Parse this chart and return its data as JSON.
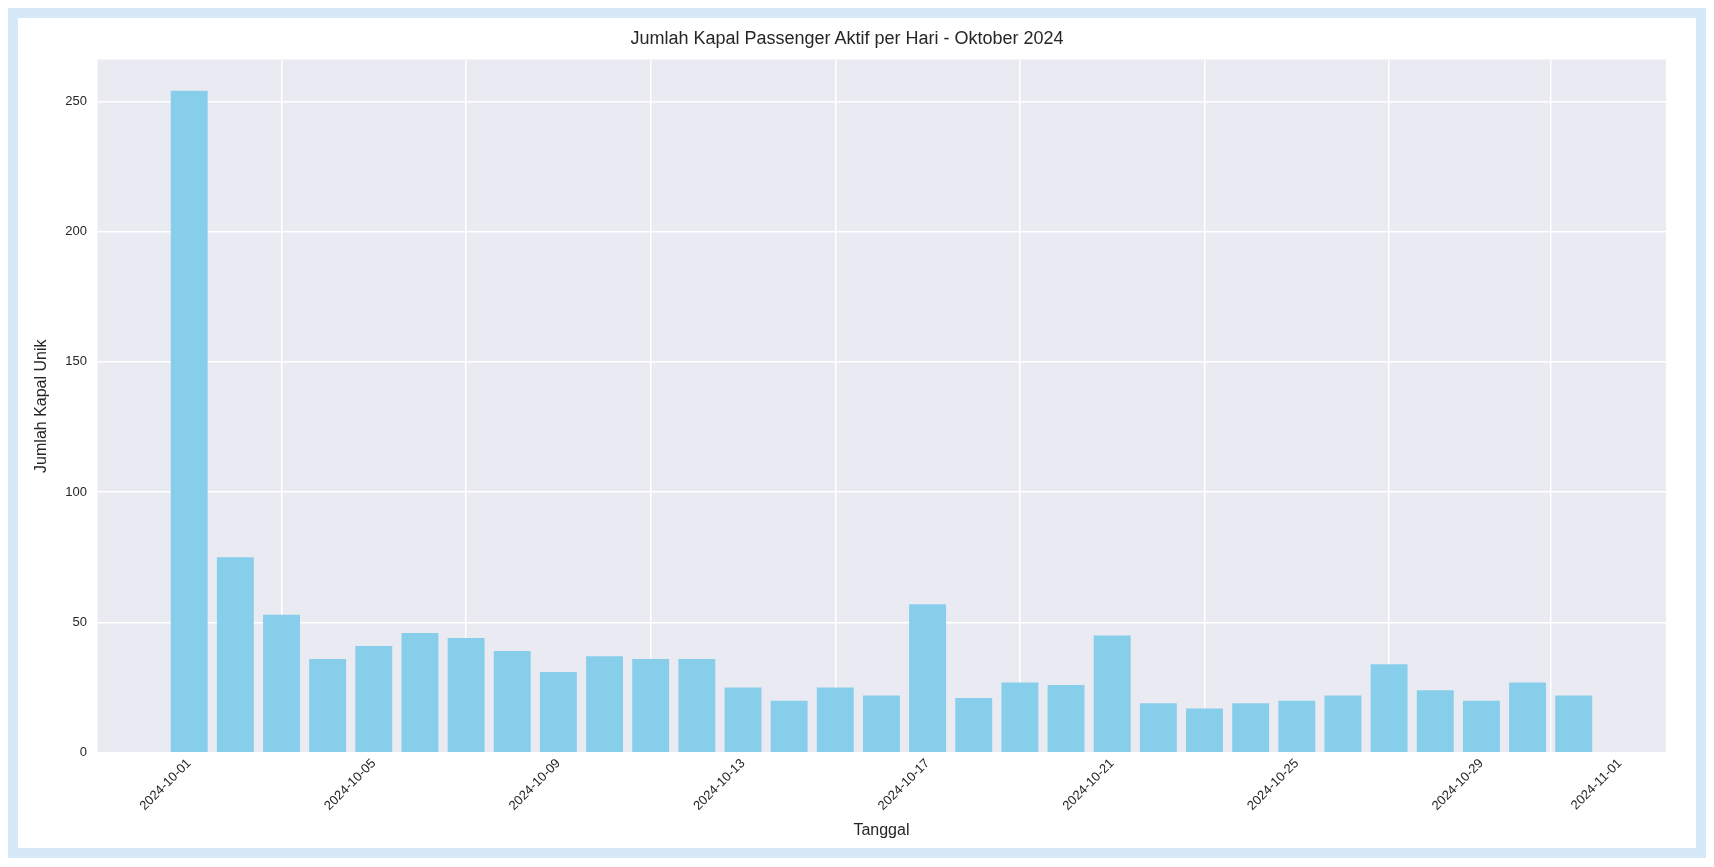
{
  "chart_data": {
    "type": "bar",
    "title": "Jumlah Kapal Passenger Aktif per Hari - Oktober 2024",
    "xlabel": "Tanggal",
    "ylabel": "Jumlah Kapal Unik",
    "x": [
      "2024-10-01",
      "2024-10-02",
      "2024-10-03",
      "2024-10-04",
      "2024-10-05",
      "2024-10-06",
      "2024-10-07",
      "2024-10-08",
      "2024-10-09",
      "2024-10-10",
      "2024-10-11",
      "2024-10-12",
      "2024-10-13",
      "2024-10-14",
      "2024-10-15",
      "2024-10-16",
      "2024-10-17",
      "2024-10-18",
      "2024-10-19",
      "2024-10-20",
      "2024-10-21",
      "2024-10-22",
      "2024-10-23",
      "2024-10-24",
      "2024-10-25",
      "2024-10-26",
      "2024-10-27",
      "2024-10-28",
      "2024-10-29",
      "2024-10-30",
      "2024-10-31"
    ],
    "values": [
      254,
      75,
      53,
      36,
      41,
      46,
      44,
      39,
      31,
      37,
      36,
      36,
      25,
      20,
      25,
      22,
      57,
      21,
      27,
      26,
      45,
      19,
      17,
      19,
      20,
      22,
      34,
      24,
      20,
      27,
      22
    ],
    "color": "#87ceeb",
    "xlim": [
      "2024-09-29",
      "2024-11-02"
    ],
    "xticks": [
      "2024-10-01",
      "2024-10-05",
      "2024-10-09",
      "2024-10-13",
      "2024-10-17",
      "2024-10-21",
      "2024-10-25",
      "2024-10-29",
      "2024-11-01"
    ],
    "ylim": [
      0,
      266
    ],
    "yticks": [
      0,
      50,
      100,
      150,
      200,
      250
    ],
    "grid": true
  }
}
